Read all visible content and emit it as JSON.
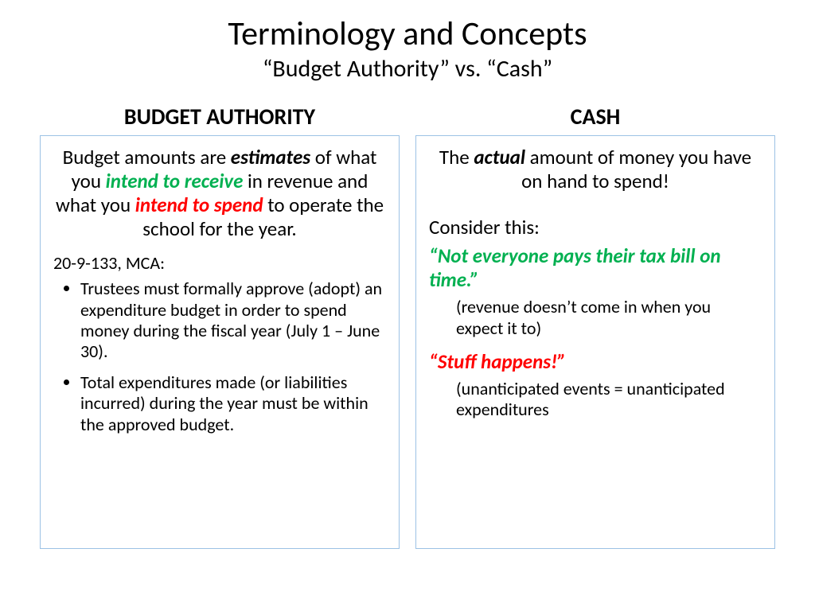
{
  "title": "Terminology and Concepts",
  "subtitle": "“Budget Authority” vs. “Cash”",
  "colors": {
    "green": "#00b050",
    "red": "#ff0000",
    "box_border": "#9cc2e5",
    "text": "#000000",
    "background": "#ffffff"
  },
  "typography": {
    "title_fontsize": 42,
    "subtitle_fontsize": 30,
    "col_header_fontsize": 28,
    "body_fontsize": 25,
    "small_fontsize": 22,
    "font_family": "Calibri"
  },
  "left": {
    "header": "BUDGET AUTHORITY",
    "p1_a": "Budget amounts are ",
    "p1_b_bold": "estimates",
    "p1_c": " of what you ",
    "p1_d_green": "intend to receive",
    "p1_e": " in revenue and what you ",
    "p1_f_red": "intend to spend",
    "p1_g": " to operate the school for the year.",
    "mca": "20-9-133, MCA:",
    "bullet1": "Trustees must formally approve (adopt) an expenditure budget in order to spend money during the fiscal year (July 1 – June 30).",
    "bullet2": "Total expenditures made (or liabilities incurred) during the year must be within the approved budget."
  },
  "right": {
    "header": "CASH",
    "p1_a": "The ",
    "p1_b_bold": "actual",
    "p1_c": " amount of money you have on hand to spend!",
    "consider": "Consider this:",
    "quote1": "“Not everyone pays their tax bill on time.”",
    "sub1": "(revenue doesn’t come in when you expect it to)",
    "quote2": "“Stuff happens!”",
    "sub2": "(unanticipated events = unanticipated expenditures"
  }
}
